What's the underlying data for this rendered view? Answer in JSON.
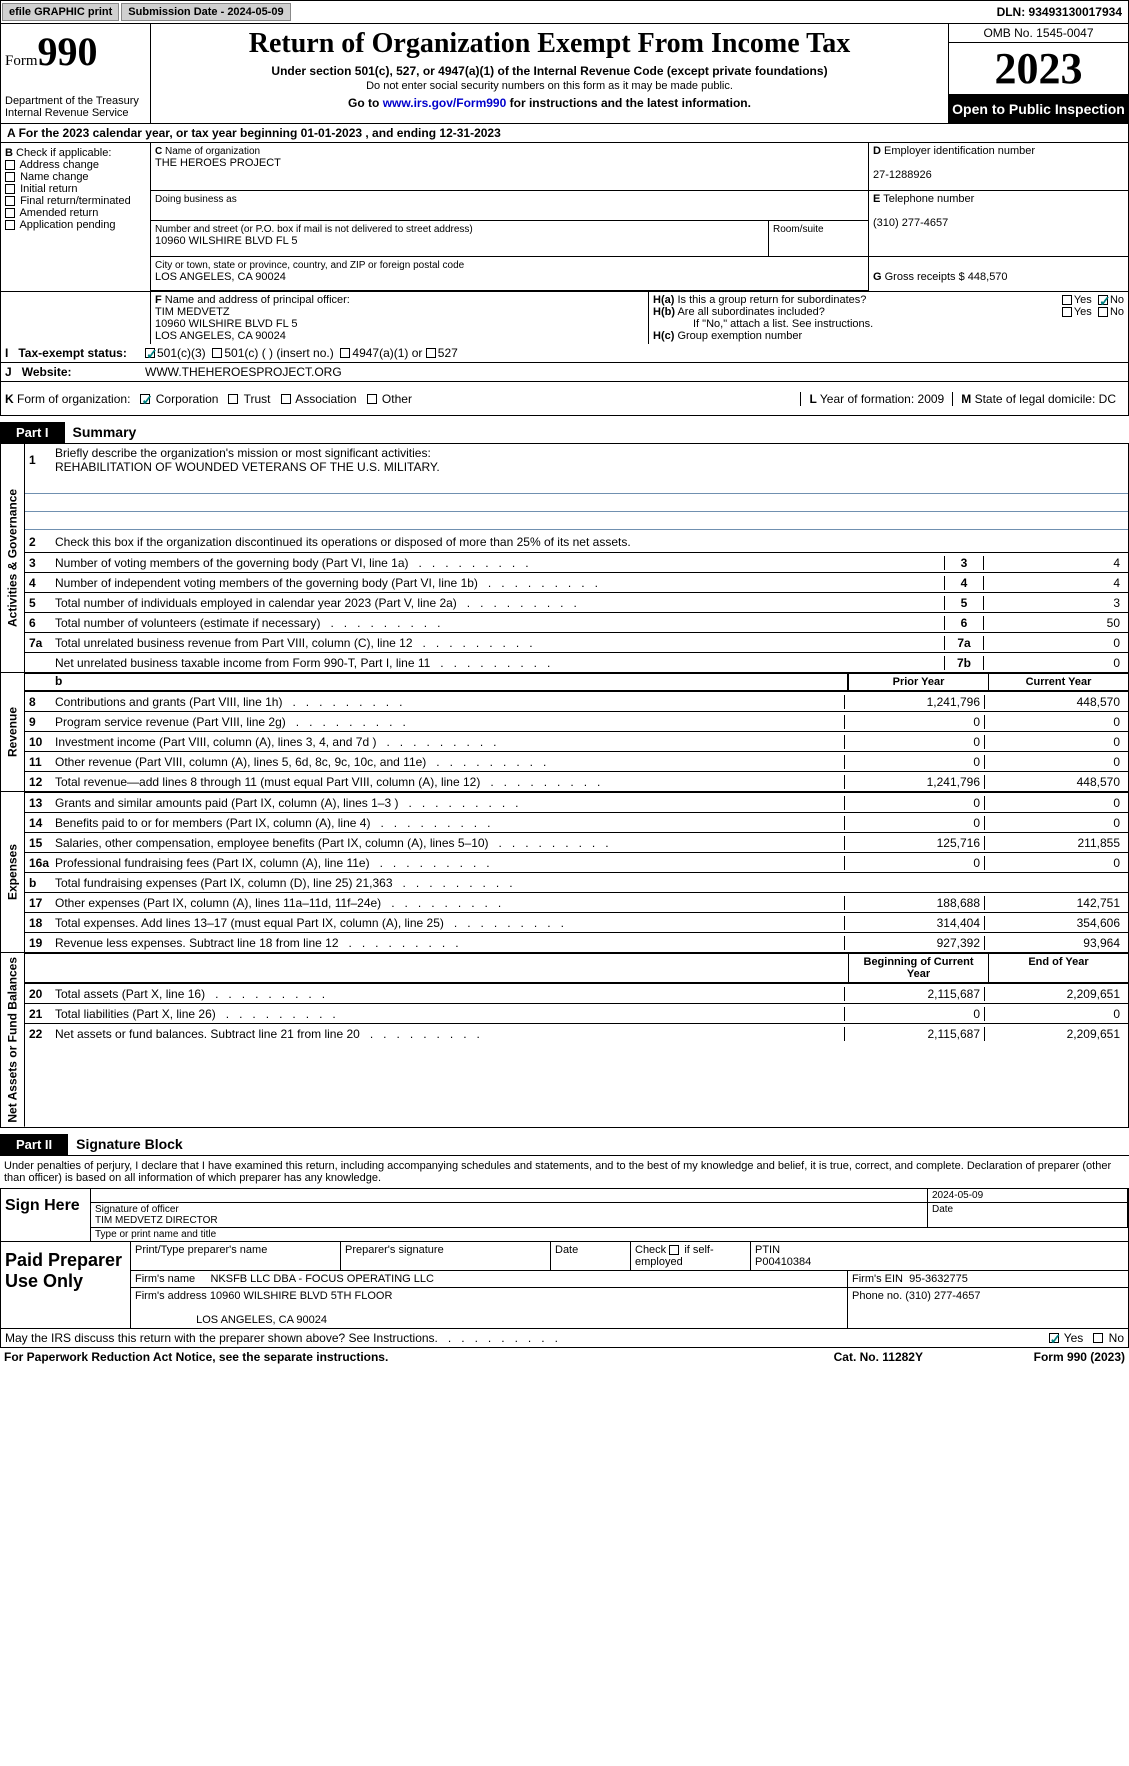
{
  "topbar": {
    "efile_label": "efile GRAPHIC print",
    "submission_label": "Submission Date - 2024-05-09",
    "dln_label": "DLN: 93493130017934"
  },
  "header": {
    "form_prefix": "Form",
    "form_number": "990",
    "dept": "Department of the Treasury\nInternal Revenue Service",
    "title": "Return of Organization Exempt From Income Tax",
    "sub1": "Under section 501(c), 527, or 4947(a)(1) of the Internal Revenue Code (except private foundations)",
    "sub2": "Do not enter social security numbers on this form as it may be made public.",
    "link_prefix": "Go to ",
    "link_url": "www.irs.gov/Form990",
    "link_suffix": " for instructions and the latest information.",
    "omb": "OMB No. 1545-0047",
    "year": "2023",
    "inspection": "Open to Public Inspection"
  },
  "line_a": "For the 2023 calendar year, or tax year beginning 01-01-2023   , and ending 12-31-2023",
  "box_b": {
    "label": "Check if applicable:",
    "opts": [
      "Address change",
      "Name change",
      "Initial return",
      "Final return/terminated",
      "Amended return",
      "Application pending"
    ],
    "prefix": "B"
  },
  "box_c": {
    "name_hint": "Name of organization",
    "name_val": "THE HEROES PROJECT",
    "dba_hint": "Doing business as",
    "addr_hint": "Number and street (or P.O. box if mail is not delivered to street address)",
    "room_hint": "Room/suite",
    "addr_val": "10960 WILSHIRE BLVD FL 5",
    "city_hint": "City or town, state or province, country, and ZIP or foreign postal code",
    "city_val": "LOS ANGELES, CA  90024",
    "prefix": "C"
  },
  "box_d": {
    "label": "Employer identification number",
    "val": "27-1288926",
    "prefix": "D"
  },
  "box_e": {
    "label": "Telephone number",
    "val": "(310) 277-4657",
    "prefix": "E"
  },
  "box_g": {
    "label": "Gross receipts $",
    "val": "448,570",
    "prefix": "G"
  },
  "box_f": {
    "label": "Name and address of principal officer:",
    "name": "TIM MEDVETZ",
    "addr1": "10960 WILSHIRE BLVD FL 5",
    "addr2": "LOS ANGELES, CA  90024",
    "prefix": "F"
  },
  "box_h": {
    "a": "Is this a group return for subordinates?",
    "b": "Are all subordinates included?",
    "b_note": "If \"No,\" attach a list. See instructions.",
    "c": "Group exemption number",
    "ha": "H(a)",
    "hb": "H(b)",
    "hc": "H(c)",
    "yes": "Yes",
    "no": "No"
  },
  "tax_exempt": {
    "label": "Tax-exempt status:",
    "opt1": "501(c)(3)",
    "opt2": "501(c) (  ) (insert no.)",
    "opt3": "4947(a)(1) or",
    "opt4": "527",
    "prefix": "I"
  },
  "website": {
    "label": "Website:",
    "val": "WWW.THEHEROESPROJECT.ORG",
    "prefix": "J"
  },
  "box_k": {
    "label": "Form of organization:",
    "opts": [
      "Corporation",
      "Trust",
      "Association",
      "Other"
    ],
    "prefix": "K"
  },
  "box_l": {
    "label": "Year of formation:",
    "val": "2009",
    "prefix": "L"
  },
  "box_m": {
    "label": "State of legal domicile:",
    "val": "DC",
    "prefix": "M"
  },
  "part1": {
    "label": "Part I",
    "title": "Summary"
  },
  "summary": {
    "tabs": [
      "Activities & Governance",
      "Revenue",
      "Expenses",
      "Net Assets or Fund Balances"
    ],
    "q1": "Briefly describe the organization's mission or most significant activities:",
    "q1_val": "REHABILITATION OF WOUNDED VETERANS OF THE U.S. MILITARY.",
    "q2": "Check this box      if the organization discontinued its operations or disposed of more than 25% of its net assets.",
    "lines_a": [
      {
        "n": "3",
        "t": "Number of voting members of the governing body (Part VI, line 1a)",
        "k": "3",
        "v": "4"
      },
      {
        "n": "4",
        "t": "Number of independent voting members of the governing body (Part VI, line 1b)",
        "k": "4",
        "v": "4"
      },
      {
        "n": "5",
        "t": "Total number of individuals employed in calendar year 2023 (Part V, line 2a)",
        "k": "5",
        "v": "3"
      },
      {
        "n": "6",
        "t": "Total number of volunteers (estimate if necessary)",
        "k": "6",
        "v": "50"
      },
      {
        "n": "7a",
        "t": "Total unrelated business revenue from Part VIII, column (C), line 12",
        "k": "7a",
        "v": "0"
      },
      {
        "n": "",
        "t": "Net unrelated business taxable income from Form 990-T, Part I, line 11",
        "k": "7b",
        "v": "0"
      }
    ],
    "hdr_prior": "Prior Year",
    "hdr_current": "Current Year",
    "lines_rev": [
      {
        "n": "8",
        "t": "Contributions and grants (Part VIII, line 1h)",
        "p": "1,241,796",
        "c": "448,570"
      },
      {
        "n": "9",
        "t": "Program service revenue (Part VIII, line 2g)",
        "p": "0",
        "c": "0"
      },
      {
        "n": "10",
        "t": "Investment income (Part VIII, column (A), lines 3, 4, and 7d )",
        "p": "0",
        "c": "0"
      },
      {
        "n": "11",
        "t": "Other revenue (Part VIII, column (A), lines 5, 6d, 8c, 9c, 10c, and 11e)",
        "p": "0",
        "c": "0"
      },
      {
        "n": "12",
        "t": "Total revenue—add lines 8 through 11 (must equal Part VIII, column (A), line 12)",
        "p": "1,241,796",
        "c": "448,570"
      }
    ],
    "lines_exp": [
      {
        "n": "13",
        "t": "Grants and similar amounts paid (Part IX, column (A), lines 1–3 )",
        "p": "0",
        "c": "0"
      },
      {
        "n": "14",
        "t": "Benefits paid to or for members (Part IX, column (A), line 4)",
        "p": "0",
        "c": "0"
      },
      {
        "n": "15",
        "t": "Salaries, other compensation, employee benefits (Part IX, column (A), lines 5–10)",
        "p": "125,716",
        "c": "211,855"
      },
      {
        "n": "16a",
        "t": "Professional fundraising fees (Part IX, column (A), line 11e)",
        "p": "0",
        "c": "0"
      },
      {
        "n": "b",
        "t": "Total fundraising expenses (Part IX, column (D), line 25) 21,363",
        "p": "",
        "c": "",
        "grey": true
      },
      {
        "n": "17",
        "t": "Other expenses (Part IX, column (A), lines 11a–11d, 11f–24e)",
        "p": "188,688",
        "c": "142,751"
      },
      {
        "n": "18",
        "t": "Total expenses. Add lines 13–17 (must equal Part IX, column (A), line 25)",
        "p": "314,404",
        "c": "354,606"
      },
      {
        "n": "19",
        "t": "Revenue less expenses. Subtract line 18 from line 12",
        "p": "927,392",
        "c": "93,964"
      }
    ],
    "hdr_begin": "Beginning of Current Year",
    "hdr_end": "End of Year",
    "lines_net": [
      {
        "n": "20",
        "t": "Total assets (Part X, line 16)",
        "p": "2,115,687",
        "c": "2,209,651"
      },
      {
        "n": "21",
        "t": "Total liabilities (Part X, line 26)",
        "p": "0",
        "c": "0"
      },
      {
        "n": "22",
        "t": "Net assets or fund balances. Subtract line 21 from line 20",
        "p": "2,115,687",
        "c": "2,209,651"
      }
    ]
  },
  "part2": {
    "label": "Part II",
    "title": "Signature Block"
  },
  "sig": {
    "penalty": "Under penalties of perjury, I declare that I have examined this return, including accompanying schedules and statements, and to the best of my knowledge and belief, it is true, correct, and complete. Declaration of preparer (other than officer) is based on all information of which preparer has any knowledge.",
    "sign_here": "Sign Here",
    "date_val": "2024-05-09",
    "sig_officer": "Signature of officer",
    "officer_name": "TIM MEDVETZ  DIRECTOR",
    "type_name": "Type or print name and title",
    "date": "Date"
  },
  "prep": {
    "label": "Paid Preparer Use Only",
    "h1": "Print/Type preparer's name",
    "h2": "Preparer's signature",
    "h3": "Date",
    "h4_pre": "Check",
    "h4_post": "if self-employed",
    "h5": "PTIN",
    "ptin": "P00410384",
    "firm_name_lbl": "Firm's name",
    "firm_name": "NKSFB LLC DBA - FOCUS OPERATING LLC",
    "firm_ein_lbl": "Firm's EIN",
    "firm_ein": "95-3632775",
    "firm_addr_lbl": "Firm's address",
    "firm_addr1": "10960 WILSHIRE BLVD 5TH FLOOR",
    "firm_addr2": "LOS ANGELES, CA  90024",
    "phone_lbl": "Phone no.",
    "phone": "(310) 277-4657"
  },
  "discuss": {
    "q": "May the IRS discuss this return with the preparer shown above? See Instructions.",
    "yes": "Yes",
    "no": "No"
  },
  "footer": {
    "notice": "For Paperwork Reduction Act Notice, see the separate instructions.",
    "cat": "Cat. No. 11282Y",
    "form": "Form 990 (2023)"
  },
  "colors": {
    "link": "#0000cc",
    "teal_check": "#008080",
    "topbar_btn": "#d0d0d0",
    "uline": "#7090b0"
  }
}
